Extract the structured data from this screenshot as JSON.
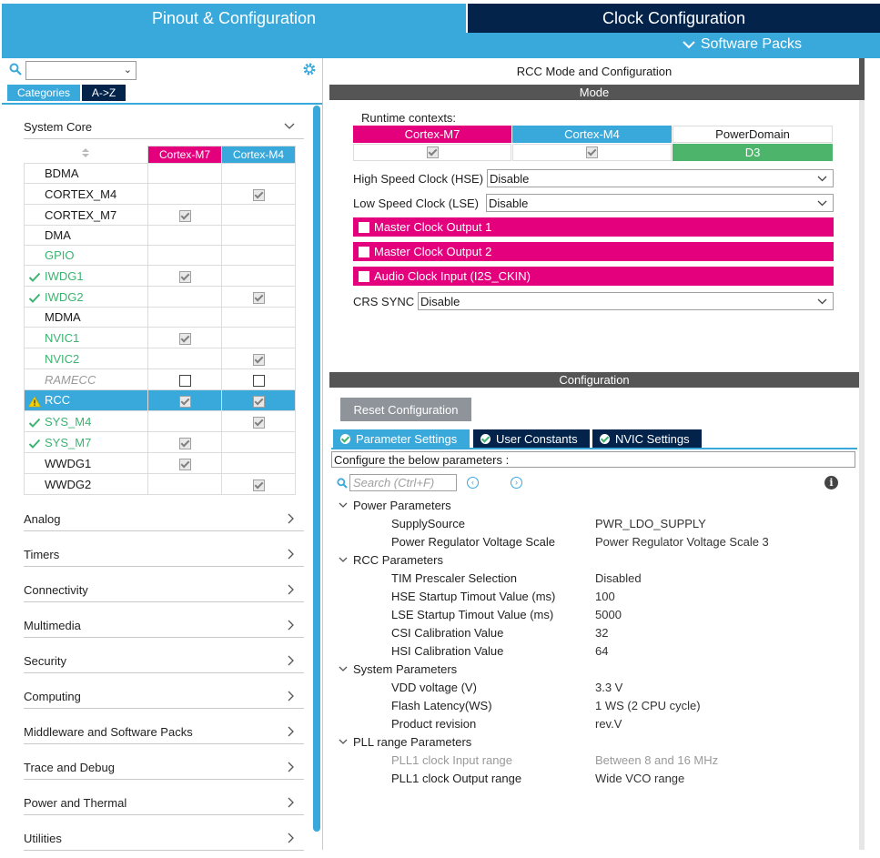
{
  "header": {
    "tab_pinout": "Pinout & Configuration",
    "tab_clock": "Clock Configuration",
    "software_packs": "Software Packs"
  },
  "left": {
    "segments": {
      "categories": "Categories",
      "az": "A->Z"
    },
    "system_core": "System Core",
    "columns": {
      "m7": "Cortex-M7",
      "m4": "Cortex-M4"
    },
    "rows": [
      {
        "name": "BDMA",
        "m7": "none",
        "m4": "none",
        "style": "normal",
        "status": ""
      },
      {
        "name": "CORTEX_M4",
        "m7": "none",
        "m4": "checked",
        "style": "normal",
        "status": ""
      },
      {
        "name": "CORTEX_M7",
        "m7": "checked",
        "m4": "none",
        "style": "normal",
        "status": ""
      },
      {
        "name": "DMA",
        "m7": "none",
        "m4": "none",
        "style": "normal",
        "status": ""
      },
      {
        "name": "GPIO",
        "m7": "none",
        "m4": "none",
        "style": "green",
        "status": ""
      },
      {
        "name": "IWDG1",
        "m7": "checked",
        "m4": "none",
        "style": "green",
        "status": "ok"
      },
      {
        "name": "IWDG2",
        "m7": "none",
        "m4": "checked",
        "style": "green",
        "status": "ok"
      },
      {
        "name": "MDMA",
        "m7": "none",
        "m4": "none",
        "style": "normal",
        "status": ""
      },
      {
        "name": "NVIC1",
        "m7": "checked",
        "m4": "none",
        "style": "green",
        "status": ""
      },
      {
        "name": "NVIC2",
        "m7": "none",
        "m4": "checked",
        "style": "green",
        "status": ""
      },
      {
        "name": "RAMECC",
        "m7": "empty",
        "m4": "empty",
        "style": "grey",
        "status": ""
      },
      {
        "name": "RCC",
        "m7": "checked",
        "m4": "checked",
        "style": "selected",
        "status": "warn"
      },
      {
        "name": "SYS_M4",
        "m7": "none",
        "m4": "checked",
        "style": "green",
        "status": "ok"
      },
      {
        "name": "SYS_M7",
        "m7": "checked",
        "m4": "none",
        "style": "green",
        "status": "ok"
      },
      {
        "name": "WWDG1",
        "m7": "checked",
        "m4": "none",
        "style": "normal",
        "status": ""
      },
      {
        "name": "WWDG2",
        "m7": "none",
        "m4": "checked",
        "style": "normal",
        "status": ""
      }
    ],
    "groups": [
      "Analog",
      "Timers",
      "Connectivity",
      "Multimedia",
      "Security",
      "Computing",
      "Middleware and Software Packs",
      "Trace and Debug",
      "Power and Thermal",
      "Utilities"
    ]
  },
  "mode": {
    "title": "RCC Mode and Configuration",
    "bar": "Mode",
    "runtime_contexts": "Runtime contexts:",
    "ctx_m7": "Cortex-M7",
    "ctx_m4": "Cortex-M4",
    "ctx_pd": "PowerDomain",
    "ctx_pd_value": "D3",
    "hse_label": "High Speed Clock (HSE)",
    "hse_value": "Disable",
    "lse_label": "Low Speed Clock (LSE)",
    "lse_value": "Disable",
    "mco1": "Master Clock Output 1",
    "mco2": "Master Clock Output 2",
    "i2s": "Audio Clock Input (I2S_CKIN)",
    "crs_label": "CRS SYNC",
    "crs_value": "Disable"
  },
  "config": {
    "bar": "Configuration",
    "reset": "Reset Configuration",
    "tab_params": "Parameter Settings",
    "tab_user": "User Constants",
    "tab_nvic": "NVIC Settings",
    "configure_text": "Configure the below parameters :",
    "search_placeholder": "Search (Ctrl+F)",
    "groups": [
      {
        "name": "Power Parameters",
        "items": [
          {
            "key": "SupplySource",
            "value": "PWR_LDO_SUPPLY",
            "muted": false
          },
          {
            "key": "Power Regulator Voltage Scale",
            "value": "Power Regulator Voltage Scale 3",
            "muted": false
          }
        ]
      },
      {
        "name": "RCC Parameters",
        "items": [
          {
            "key": "TIM Prescaler Selection",
            "value": "Disabled",
            "muted": false
          },
          {
            "key": "HSE Startup Timout Value (ms)",
            "value": "100",
            "muted": false
          },
          {
            "key": "LSE Startup Timout Value (ms)",
            "value": "5000",
            "muted": false
          },
          {
            "key": "CSI Calibration Value",
            "value": "32",
            "muted": false
          },
          {
            "key": "HSI Calibration Value",
            "value": "64",
            "muted": false
          }
        ]
      },
      {
        "name": "System Parameters",
        "items": [
          {
            "key": "VDD voltage (V)",
            "value": "3.3 V",
            "muted": false
          },
          {
            "key": "Flash Latency(WS)",
            "value": "1 WS (2 CPU cycle)",
            "muted": false
          },
          {
            "key": "Product revision",
            "value": "rev.V",
            "muted": false
          }
        ]
      },
      {
        "name": "PLL range Parameters",
        "items": [
          {
            "key": "PLL1 clock Input range",
            "value": "Between 8 and 16 MHz",
            "muted": true
          },
          {
            "key": "PLL1 clock Output range",
            "value": "Wide VCO range",
            "muted": false
          }
        ]
      }
    ]
  },
  "colors": {
    "accent": "#39a9dc",
    "navy": "#03234b",
    "magenta": "#e4007c",
    "green": "#3cb371"
  }
}
